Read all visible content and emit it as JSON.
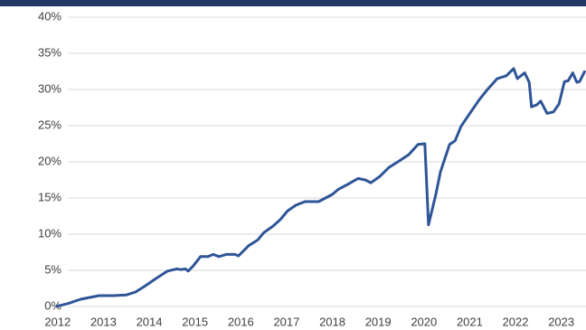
{
  "chart_data": {
    "type": "line",
    "x": [
      2011.96,
      2012.22,
      2012.5,
      2012.9,
      2013.2,
      2013.5,
      2013.7,
      2013.9,
      2014.13,
      2014.4,
      2014.6,
      2014.69,
      2014.79,
      2014.85,
      2014.96,
      2015.12,
      2015.28,
      2015.4,
      2015.52,
      2015.68,
      2015.87,
      2015.95,
      2016.17,
      2016.37,
      2016.5,
      2016.7,
      2016.86,
      2017.02,
      2017.2,
      2017.4,
      2017.7,
      2017.85,
      2018.0,
      2018.13,
      2018.34,
      2018.56,
      2018.72,
      2018.84,
      2019.04,
      2019.23,
      2019.43,
      2019.67,
      2019.87,
      2020.02,
      2020.1,
      2020.26,
      2020.36,
      2020.46,
      2020.56,
      2020.68,
      2020.81,
      2020.97,
      2021.21,
      2021.4,
      2021.6,
      2021.8,
      2021.96,
      2022.04,
      2022.2,
      2022.3,
      2022.35,
      2022.47,
      2022.55,
      2022.69,
      2022.83,
      2022.95,
      2023.07,
      2023.15,
      2023.25,
      2023.34,
      2023.4,
      2023.52
    ],
    "series": [
      {
        "color": "#2f5597",
        "values": [
          0,
          0.4,
          1.0,
          1.5,
          1.5,
          1.6,
          2.0,
          2.8,
          3.8,
          4.9,
          5.2,
          5.1,
          5.2,
          4.9,
          5.6,
          6.9,
          6.9,
          7.2,
          6.9,
          7.2,
          7.2,
          7.0,
          8.4,
          9.2,
          10.2,
          11.1,
          12.0,
          13.2,
          14.0,
          14.5,
          14.5,
          15.0,
          15.5,
          16.2,
          16.9,
          17.7,
          17.5,
          17.1,
          18.0,
          19.2,
          20.0,
          21.0,
          22.4,
          22.5,
          11.3,
          15.5,
          18.6,
          20.5,
          22.4,
          22.9,
          24.9,
          26.4,
          28.6,
          30.1,
          31.5,
          31.9,
          32.9,
          31.5,
          32.3,
          31.0,
          27.6,
          27.9,
          28.4,
          26.7,
          26.9,
          28.0,
          31.1,
          31.2,
          32.3,
          31.0,
          31.1,
          32.6
        ]
      }
    ],
    "xlim": [
      2011.53,
      2023.54
    ],
    "xticks": [
      2012,
      2013,
      2014,
      2015,
      2016,
      2017,
      2018,
      2019,
      2020,
      2021,
      2022,
      2023
    ],
    "ylim": [
      0,
      40
    ],
    "yticks": [
      {
        "value": 0,
        "label": "0%"
      },
      {
        "value": 5,
        "label": "5%"
      },
      {
        "value": 10,
        "label": "10%"
      },
      {
        "value": 15,
        "label": "15%"
      },
      {
        "value": 20,
        "label": "20%"
      },
      {
        "value": 25,
        "label": "25%"
      },
      {
        "value": 30,
        "label": "30%"
      },
      {
        "value": 35,
        "label": "35%"
      },
      {
        "value": 40,
        "label": "40%"
      }
    ],
    "grid": true
  }
}
